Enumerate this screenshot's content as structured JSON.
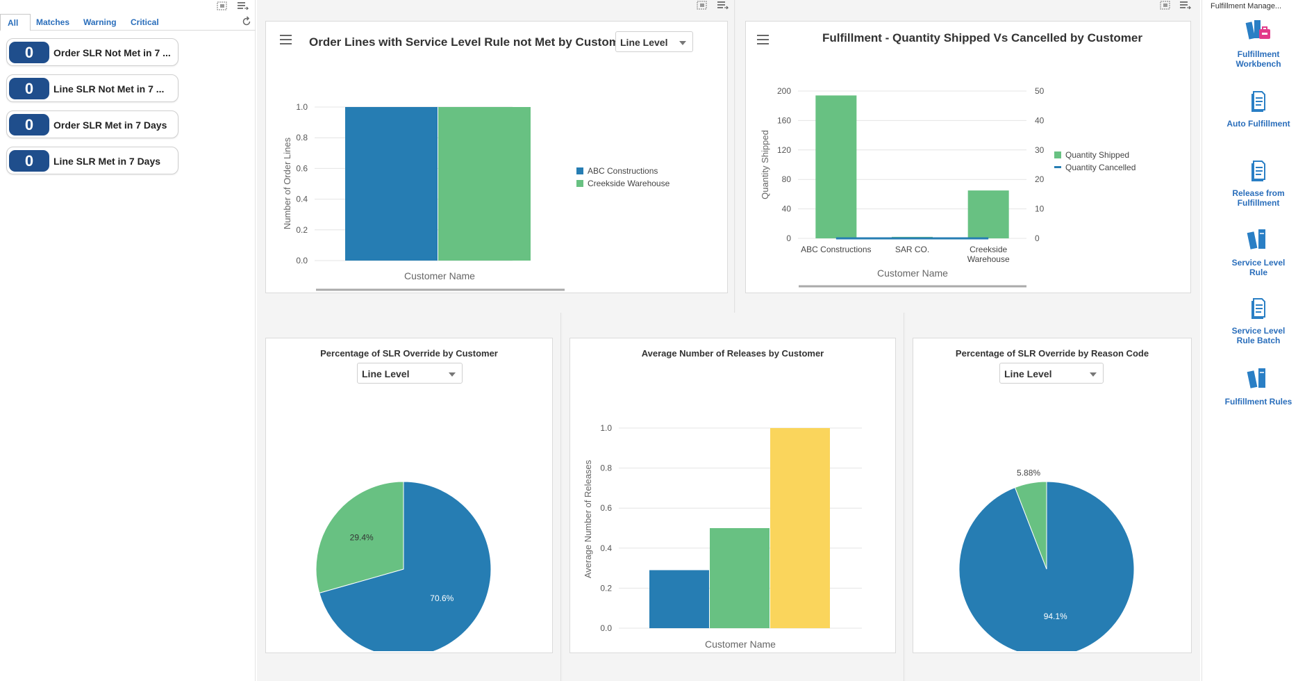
{
  "left_panel": {
    "tabs": [
      {
        "label": "All",
        "active": true
      },
      {
        "label": "Matches",
        "active": false
      },
      {
        "label": "Warning",
        "active": false
      },
      {
        "label": "Critical",
        "active": false
      }
    ],
    "tiles": [
      {
        "count": "0",
        "label": "Order SLR Not Met in 7 ..."
      },
      {
        "count": "0",
        "label": "Line SLR Not Met in 7 ..."
      },
      {
        "count": "0",
        "label": "Order SLR Met in 7 Days"
      },
      {
        "count": "0",
        "label": "Line SLR Met in 7 Days"
      }
    ]
  },
  "chart1": {
    "title": "Order Lines with Service Level Rule not Met by Customer",
    "select_value": "Line Level"
  },
  "chart2": {
    "title": "Fulfillment - Quantity Shipped Vs Cancelled by Customer"
  },
  "chart3": {
    "title": "Percentage of SLR Override by Customer",
    "select_value": "Line Level"
  },
  "chart4": {
    "title": "Average Number of Releases by Customer"
  },
  "chart5": {
    "title": "Percentage of SLR Override by Reason Code",
    "select_value": "Line Level"
  },
  "right_panel": {
    "title": "Fulfillment Manage...",
    "items": [
      {
        "label_line1": "Fulfillment",
        "label_line2": "Workbench",
        "icon": "workbench-icon"
      },
      {
        "label_line1": "Auto Fulfillment",
        "label_line2": "",
        "icon": "document-icon"
      },
      {
        "label_line1": "Release from",
        "label_line2": "Fulfillment",
        "icon": "document-icon"
      },
      {
        "label_line1": "Service Level",
        "label_line2": "Rule",
        "icon": "books-icon"
      },
      {
        "label_line1": "Service Level",
        "label_line2": "Rule Batch",
        "icon": "document-icon"
      },
      {
        "label_line1": "Fulfillment Rules",
        "label_line2": "",
        "icon": "books-icon"
      }
    ]
  },
  "colors": {
    "blue": "#267db3",
    "green": "#68c182",
    "yellow": "#fad55c",
    "badge": "#1f4e8c",
    "link": "#2a6ebb"
  },
  "chart_data": [
    {
      "type": "bar",
      "title": "Order Lines with Service Level Rule not Met by Customer",
      "xlabel": "Customer Name",
      "ylabel": "Number of Order Lines",
      "ylim": [
        0,
        1.0
      ],
      "yticks": [
        "0.0",
        "0.2",
        "0.4",
        "0.6",
        "0.8",
        "1.0"
      ],
      "series": [
        {
          "name": "ABC Constructions",
          "values": [
            1.0
          ],
          "color": "#267db3"
        },
        {
          "name": "Creekside Warehouse",
          "values": [
            1.0
          ],
          "color": "#68c182"
        }
      ],
      "legend": "right"
    },
    {
      "type": "bar",
      "title": "Fulfillment - Quantity Shipped Vs Cancelled by Customer",
      "categories": [
        "ABC Constructions",
        "SAR CO.",
        "Creekside Warehouse"
      ],
      "xlabel": "Customer Name",
      "ylabel": "Quantity Shipped",
      "ylim": [
        0,
        200
      ],
      "y2lim": [
        0,
        50
      ],
      "yticks": [
        "0",
        "40",
        "80",
        "120",
        "160",
        "200"
      ],
      "y2ticks": [
        "0",
        "10",
        "20",
        "30",
        "40",
        "50"
      ],
      "series": [
        {
          "name": "Quantity Shipped",
          "values": [
            194,
            2,
            65
          ],
          "color": "#68c182"
        },
        {
          "name": "Quantity Cancelled",
          "values": [
            0,
            0,
            0
          ],
          "color": "#267db3"
        }
      ],
      "legend": "right"
    },
    {
      "type": "pie",
      "title": "Percentage of SLR Override by Customer",
      "slices": [
        {
          "value": 70.6,
          "label": "70.6%",
          "color": "#267db3"
        },
        {
          "value": 29.4,
          "label": "29.4%",
          "color": "#68c182"
        }
      ]
    },
    {
      "type": "bar",
      "title": "Average Number of Releases by Customer",
      "xlabel": "Customer Name",
      "ylabel": "Average Number of Releases",
      "ylim": [
        0,
        1.0
      ],
      "yticks": [
        "0.0",
        "0.2",
        "0.4",
        "0.6",
        "0.8",
        "1.0"
      ],
      "series": [
        {
          "values": [
            0.29
          ],
          "color": "#267db3"
        },
        {
          "values": [
            0.5
          ],
          "color": "#68c182"
        },
        {
          "values": [
            1.0
          ],
          "color": "#fad55c"
        }
      ]
    },
    {
      "type": "pie",
      "title": "Percentage of SLR Override by Reason Code",
      "slices": [
        {
          "value": 94.1,
          "label": "94.1%",
          "color": "#267db3"
        },
        {
          "value": 5.88,
          "label": "5.88%",
          "color": "#68c182"
        }
      ]
    }
  ]
}
